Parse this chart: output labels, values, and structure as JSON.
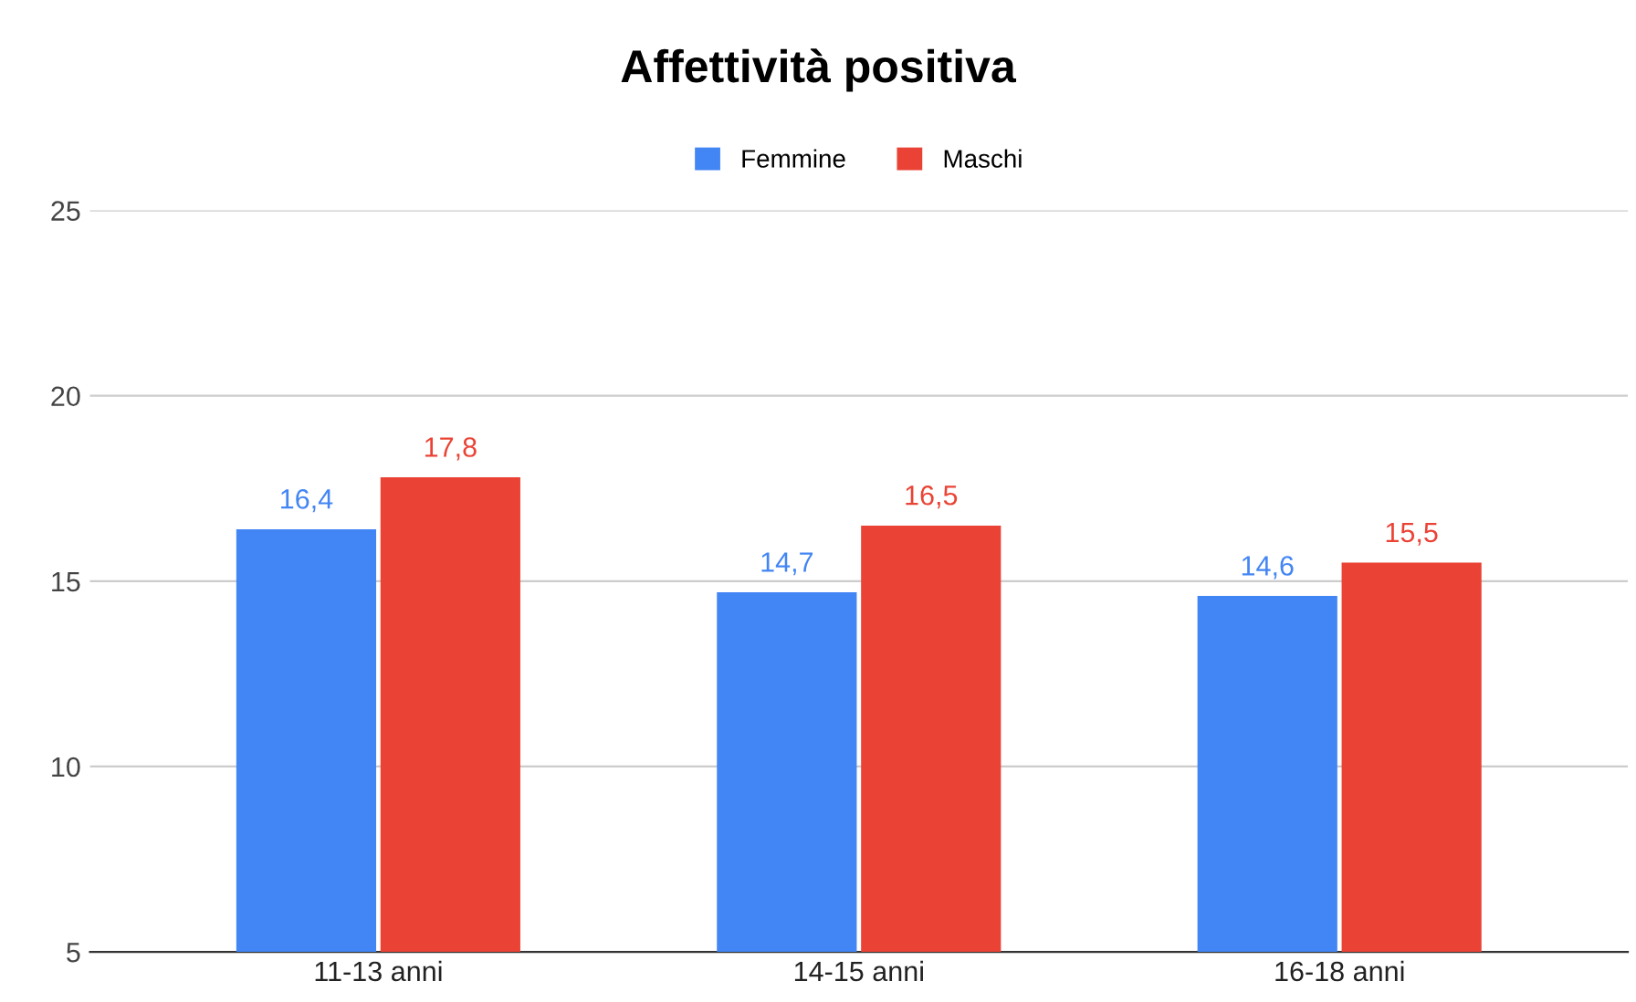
{
  "chart_data": {
    "type": "bar",
    "title": "Affettività positiva",
    "categories": [
      "11-13 anni",
      "14-15 anni",
      "16-18 anni"
    ],
    "series": [
      {
        "name": "Femmine",
        "color": "#4285f4",
        "values": [
          16.4,
          14.7,
          14.6
        ],
        "value_labels": [
          "16,4",
          "14,7",
          "14,6"
        ]
      },
      {
        "name": "Maschi",
        "color": "#ea4335",
        "values": [
          17.8,
          16.5,
          15.5
        ],
        "value_labels": [
          "17,8",
          "16,5",
          "15,5"
        ]
      }
    ],
    "ylim": [
      5,
      25
    ],
    "yticks": [
      5,
      10,
      15,
      20,
      25
    ],
    "grid": "y",
    "legend": "top"
  }
}
